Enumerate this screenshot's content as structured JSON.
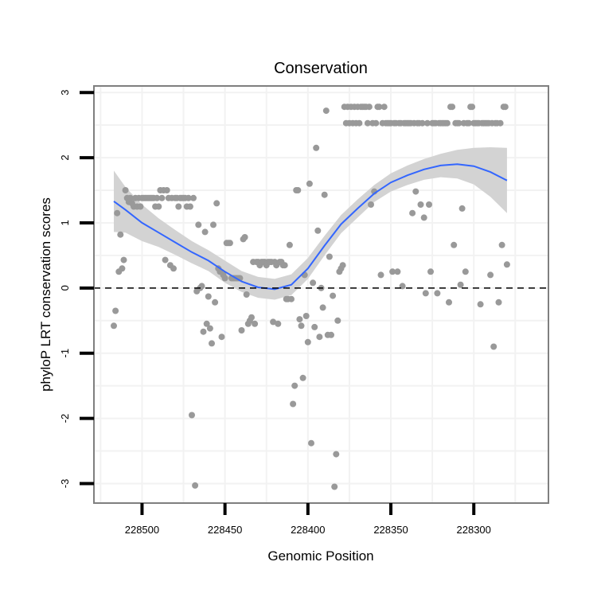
{
  "chart_data": {
    "type": "scatter",
    "title": "Conservation",
    "xlabel": "Genomic Position",
    "ylabel": "phyloP LRT conservation scores",
    "x_reversed": true,
    "xlim": [
      228529,
      228255
    ],
    "ylim": [
      -3.3,
      3.1
    ],
    "x_ticks": [
      228500,
      228450,
      228400,
      228350,
      228300
    ],
    "y_ticks": [
      3,
      2,
      1,
      0,
      -1,
      -2,
      -3
    ],
    "grid": true,
    "reference_line": {
      "y": 0,
      "style": "dashed"
    },
    "colors": {
      "points": "#999999",
      "smooth_line": "#3366ff",
      "confidence_band": "#d3d3d3",
      "panel_border": "#7f7f7f",
      "grid": "#f2f2f2"
    },
    "points": [
      [
        228517,
        -0.58
      ],
      [
        228516,
        -0.35
      ],
      [
        228515,
        1.15
      ],
      [
        228514,
        0.25
      ],
      [
        228513,
        0.82
      ],
      [
        228512,
        0.3
      ],
      [
        228511,
        0.43
      ],
      [
        228510,
        1.5
      ],
      [
        228509,
        1.38
      ],
      [
        228508,
        1.32
      ],
      [
        228507,
        1.38
      ],
      [
        228506,
        1.3
      ],
      [
        228505,
        1.25
      ],
      [
        228504,
        1.38
      ],
      [
        228503,
        1.25
      ],
      [
        228502,
        1.38
      ],
      [
        228501,
        1.25
      ],
      [
        228500,
        1.38
      ],
      [
        228499,
        1.38
      ],
      [
        228498,
        1.38
      ],
      [
        228497,
        1.38
      ],
      [
        228496,
        1.38
      ],
      [
        228495,
        1.38
      ],
      [
        228494,
        1.38
      ],
      [
        228493,
        1.38
      ],
      [
        228492,
        1.25
      ],
      [
        228491,
        1.38
      ],
      [
        228490,
        1.25
      ],
      [
        228489,
        1.5
      ],
      [
        228488,
        1.38
      ],
      [
        228487,
        1.5
      ],
      [
        228486,
        0.43
      ],
      [
        228485,
        1.5
      ],
      [
        228484,
        1.38
      ],
      [
        228483,
        0.35
      ],
      [
        228482,
        1.38
      ],
      [
        228481,
        0.3
      ],
      [
        228480,
        1.38
      ],
      [
        228479,
        1.38
      ],
      [
        228478,
        1.25
      ],
      [
        228477,
        1.38
      ],
      [
        228476,
        1.38
      ],
      [
        228475,
        1.38
      ],
      [
        228474,
        1.38
      ],
      [
        228473,
        1.25
      ],
      [
        228472,
        1.38
      ],
      [
        228471,
        1.25
      ],
      [
        228470,
        -1.95
      ],
      [
        228469,
        1.38
      ],
      [
        228468,
        -3.03
      ],
      [
        228467,
        -0.05
      ],
      [
        228466,
        0.97
      ],
      [
        228465,
        0.0
      ],
      [
        228464,
        0.03
      ],
      [
        228463,
        -0.67
      ],
      [
        228462,
        0.86
      ],
      [
        228461,
        -0.55
      ],
      [
        228460,
        -0.13
      ],
      [
        228459,
        -0.62
      ],
      [
        228458,
        -0.85
      ],
      [
        228457,
        0.97
      ],
      [
        228456,
        -0.22
      ],
      [
        228455,
        1.3
      ],
      [
        228454,
        0.3
      ],
      [
        228453,
        0.25
      ],
      [
        228452,
        -0.75
      ],
      [
        228451,
        0.2
      ],
      [
        228450,
        0.15
      ],
      [
        228449,
        0.69
      ],
      [
        228448,
        0.69
      ],
      [
        228447,
        0.69
      ],
      [
        228446,
        0.15
      ],
      [
        228445,
        0.15
      ],
      [
        228444,
        0.15
      ],
      [
        228443,
        0.15
      ],
      [
        228442,
        0.15
      ],
      [
        228441,
        0.15
      ],
      [
        228440,
        -0.65
      ],
      [
        228439,
        0.75
      ],
      [
        228438,
        0.78
      ],
      [
        228437,
        -0.1
      ],
      [
        228436,
        -0.55
      ],
      [
        228435,
        -0.5
      ],
      [
        228434,
        -0.45
      ],
      [
        228433,
        0.4
      ],
      [
        228432,
        -0.55
      ],
      [
        228431,
        0.4
      ],
      [
        228430,
        0.4
      ],
      [
        228429,
        0.35
      ],
      [
        228428,
        0.4
      ],
      [
        228427,
        0.4
      ],
      [
        228426,
        0.4
      ],
      [
        228425,
        0.35
      ],
      [
        228424,
        0.4
      ],
      [
        228423,
        0.4
      ],
      [
        228422,
        0.4
      ],
      [
        228421,
        -0.52
      ],
      [
        228420,
        0.4
      ],
      [
        228419,
        0.35
      ],
      [
        228418,
        -0.55
      ],
      [
        228417,
        0.4
      ],
      [
        228416,
        0.4
      ],
      [
        228415,
        0.35
      ],
      [
        228414,
        0.35
      ],
      [
        228413,
        -0.17
      ],
      [
        228412,
        -0.17
      ],
      [
        228411,
        0.66
      ],
      [
        228410,
        -0.17
      ],
      [
        228409,
        -1.78
      ],
      [
        228408,
        -1.5
      ],
      [
        228407,
        1.5
      ],
      [
        228406,
        1.5
      ],
      [
        228405,
        -0.48
      ],
      [
        228404,
        -0.58
      ],
      [
        228403,
        -1.38
      ],
      [
        228402,
        0.2
      ],
      [
        228401,
        -0.43
      ],
      [
        228400,
        -0.83
      ],
      [
        228399,
        1.6
      ],
      [
        228398,
        -2.38
      ],
      [
        228397,
        0.08
      ],
      [
        228396,
        -0.6
      ],
      [
        228395,
        2.15
      ],
      [
        228394,
        0.88
      ],
      [
        228393,
        -0.75
      ],
      [
        228392,
        0.0
      ],
      [
        228391,
        -0.3
      ],
      [
        228390,
        1.43
      ],
      [
        228389,
        2.72
      ],
      [
        228388,
        -0.72
      ],
      [
        228387,
        0.48
      ],
      [
        228386,
        -0.72
      ],
      [
        228385,
        -0.12
      ],
      [
        228384,
        -3.05
      ],
      [
        228383,
        -2.55
      ],
      [
        228382,
        -0.5
      ],
      [
        228381,
        0.25
      ],
      [
        228380,
        0.3
      ],
      [
        228379,
        0.35
      ],
      [
        228378,
        2.78
      ],
      [
        228377,
        2.53
      ],
      [
        228376,
        2.78
      ],
      [
        228375,
        2.53
      ],
      [
        228374,
        2.78
      ],
      [
        228373,
        2.53
      ],
      [
        228372,
        2.78
      ],
      [
        228371,
        2.53
      ],
      [
        228370,
        2.78
      ],
      [
        228369,
        2.53
      ],
      [
        228368,
        2.78
      ],
      [
        228367,
        2.78
      ],
      [
        228366,
        2.78
      ],
      [
        228365,
        2.78
      ],
      [
        228364,
        2.53
      ],
      [
        228363,
        2.78
      ],
      [
        228362,
        1.28
      ],
      [
        228361,
        2.53
      ],
      [
        228360,
        1.48
      ],
      [
        228359,
        2.53
      ],
      [
        228358,
        2.78
      ],
      [
        228357,
        2.78
      ],
      [
        228356,
        0.2
      ],
      [
        228355,
        2.53
      ],
      [
        228354,
        2.78
      ],
      [
        228353,
        2.53
      ],
      [
        228352,
        2.53
      ],
      [
        228351,
        2.53
      ],
      [
        228350,
        2.53
      ],
      [
        228349,
        0.25
      ],
      [
        228348,
        2.53
      ],
      [
        228347,
        2.53
      ],
      [
        228346,
        0.25
      ],
      [
        228345,
        2.53
      ],
      [
        228344,
        2.53
      ],
      [
        228343,
        0.03
      ],
      [
        228342,
        2.53
      ],
      [
        228341,
        2.53
      ],
      [
        228340,
        2.53
      ],
      [
        228339,
        2.53
      ],
      [
        228338,
        2.53
      ],
      [
        228337,
        1.15
      ],
      [
        228336,
        2.53
      ],
      [
        228335,
        1.48
      ],
      [
        228334,
        2.53
      ],
      [
        228333,
        2.53
      ],
      [
        228332,
        1.28
      ],
      [
        228331,
        2.53
      ],
      [
        228330,
        1.08
      ],
      [
        228329,
        -0.08
      ],
      [
        228328,
        2.53
      ],
      [
        228327,
        1.28
      ],
      [
        228326,
        0.25
      ],
      [
        228325,
        2.53
      ],
      [
        228324,
        2.53
      ],
      [
        228323,
        2.53
      ],
      [
        228322,
        -0.08
      ],
      [
        228321,
        2.53
      ],
      [
        228320,
        2.53
      ],
      [
        228319,
        2.53
      ],
      [
        228318,
        2.53
      ],
      [
        228317,
        2.53
      ],
      [
        228316,
        2.53
      ],
      [
        228315,
        -0.22
      ],
      [
        228314,
        2.78
      ],
      [
        228313,
        2.78
      ],
      [
        228312,
        0.66
      ],
      [
        228311,
        2.53
      ],
      [
        228310,
        2.53
      ],
      [
        228309,
        2.53
      ],
      [
        228308,
        0.05
      ],
      [
        228307,
        1.22
      ],
      [
        228306,
        2.53
      ],
      [
        228305,
        0.25
      ],
      [
        228304,
        2.53
      ],
      [
        228303,
        2.53
      ],
      [
        228302,
        2.78
      ],
      [
        228301,
        2.78
      ],
      [
        228300,
        2.53
      ],
      [
        228299,
        2.53
      ],
      [
        228298,
        2.53
      ],
      [
        228297,
        2.53
      ],
      [
        228296,
        -0.25
      ],
      [
        228295,
        2.53
      ],
      [
        228294,
        2.53
      ],
      [
        228293,
        2.53
      ],
      [
        228292,
        2.53
      ],
      [
        228291,
        2.53
      ],
      [
        228290,
        0.2
      ],
      [
        228289,
        2.53
      ],
      [
        228288,
        -0.9
      ],
      [
        228287,
        2.53
      ],
      [
        228286,
        2.53
      ],
      [
        228285,
        -0.22
      ],
      [
        228284,
        2.53
      ],
      [
        228283,
        0.66
      ],
      [
        228282,
        2.78
      ],
      [
        228281,
        2.78
      ],
      [
        228280,
        0.36
      ]
    ],
    "smooth": [
      [
        228517,
        1.33
      ],
      [
        228510,
        1.2
      ],
      [
        228500,
        1.0
      ],
      [
        228490,
        0.85
      ],
      [
        228480,
        0.7
      ],
      [
        228470,
        0.55
      ],
      [
        228460,
        0.42
      ],
      [
        228450,
        0.25
      ],
      [
        228440,
        0.1
      ],
      [
        228430,
        0.01
      ],
      [
        228420,
        -0.02
      ],
      [
        228410,
        0.05
      ],
      [
        228400,
        0.3
      ],
      [
        228390,
        0.65
      ],
      [
        228380,
        0.98
      ],
      [
        228370,
        1.22
      ],
      [
        228360,
        1.45
      ],
      [
        228350,
        1.62
      ],
      [
        228340,
        1.73
      ],
      [
        228330,
        1.82
      ],
      [
        228320,
        1.88
      ],
      [
        228310,
        1.9
      ],
      [
        228300,
        1.87
      ],
      [
        228290,
        1.78
      ],
      [
        228280,
        1.65
      ]
    ],
    "band_upper": [
      [
        228517,
        1.8
      ],
      [
        228510,
        1.55
      ],
      [
        228500,
        1.28
      ],
      [
        228490,
        1.07
      ],
      [
        228480,
        0.89
      ],
      [
        228470,
        0.72
      ],
      [
        228460,
        0.58
      ],
      [
        228450,
        0.42
      ],
      [
        228440,
        0.26
      ],
      [
        228430,
        0.17
      ],
      [
        228420,
        0.14
      ],
      [
        228410,
        0.21
      ],
      [
        228400,
        0.46
      ],
      [
        228390,
        0.8
      ],
      [
        228380,
        1.12
      ],
      [
        228370,
        1.36
      ],
      [
        228360,
        1.58
      ],
      [
        228350,
        1.76
      ],
      [
        228340,
        1.88
      ],
      [
        228330,
        1.98
      ],
      [
        228320,
        2.06
      ],
      [
        228310,
        2.12
      ],
      [
        228300,
        2.15
      ],
      [
        228290,
        2.16
      ],
      [
        228280,
        2.15
      ]
    ],
    "band_lower": [
      [
        228517,
        0.86
      ],
      [
        228510,
        0.85
      ],
      [
        228500,
        0.72
      ],
      [
        228490,
        0.63
      ],
      [
        228480,
        0.51
      ],
      [
        228470,
        0.38
      ],
      [
        228460,
        0.26
      ],
      [
        228450,
        0.08
      ],
      [
        228440,
        -0.06
      ],
      [
        228430,
        -0.15
      ],
      [
        228420,
        -0.18
      ],
      [
        228410,
        -0.11
      ],
      [
        228400,
        0.14
      ],
      [
        228390,
        0.5
      ],
      [
        228380,
        0.84
      ],
      [
        228370,
        1.08
      ],
      [
        228360,
        1.32
      ],
      [
        228350,
        1.48
      ],
      [
        228340,
        1.58
      ],
      [
        228330,
        1.66
      ],
      [
        228320,
        1.7
      ],
      [
        228310,
        1.68
      ],
      [
        228300,
        1.59
      ],
      [
        228290,
        1.4
      ],
      [
        228280,
        1.15
      ]
    ]
  }
}
